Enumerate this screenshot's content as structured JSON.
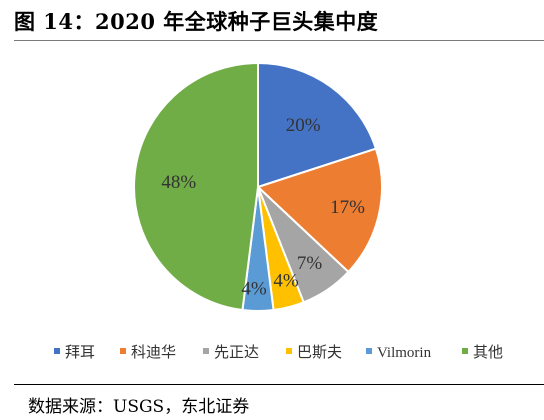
{
  "figure": {
    "title": "图 14：2020 年全球种子巨头集中度",
    "source": "数据来源：USGS，东北证券"
  },
  "chart_data": {
    "type": "pie",
    "title": "",
    "categories": [
      "拜耳",
      "科迪华",
      "先正达",
      "巴斯夫",
      "Vilmorin",
      "其他"
    ],
    "values": [
      20,
      17,
      7,
      4,
      4,
      48
    ],
    "value_labels": [
      "20%",
      "17%",
      "7%",
      "4%",
      "4%",
      "48%"
    ],
    "unit": "%",
    "colors": [
      "#4472C4",
      "#ED7D31",
      "#A5A5A5",
      "#FFC000",
      "#5B9BD5",
      "#70AD47"
    ],
    "start_angle": "12 o'clock, clockwise",
    "legend_position": "bottom"
  }
}
